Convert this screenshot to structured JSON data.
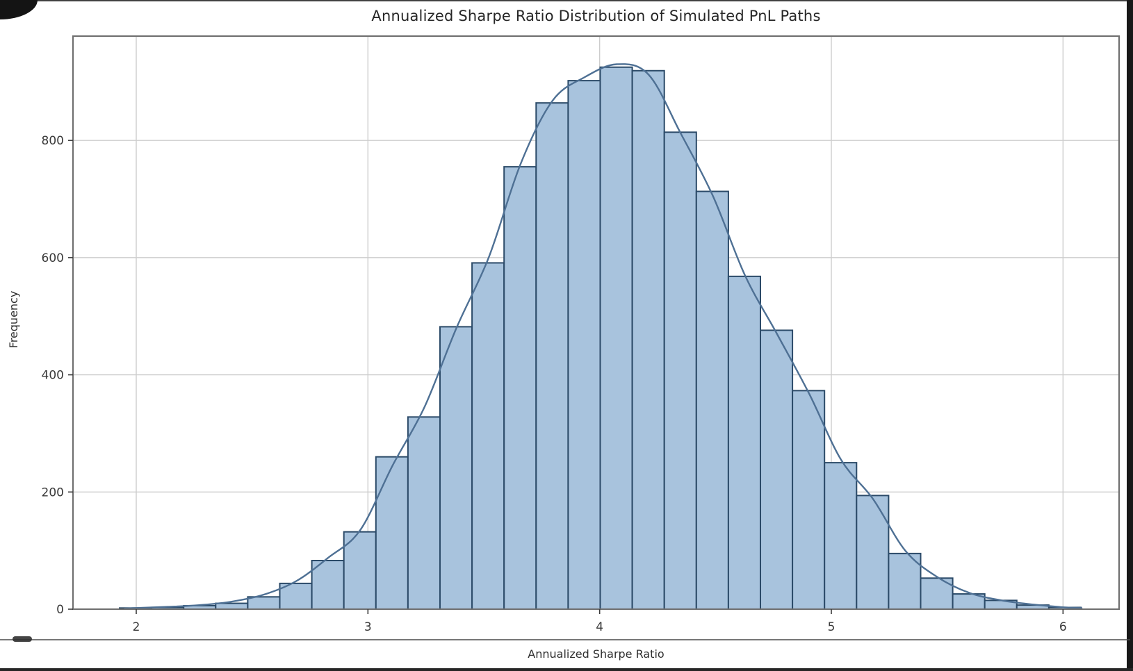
{
  "chart_data": {
    "type": "bar",
    "subtype": "histogram-with-kde",
    "title": "Annualized Sharpe Ratio Distribution of Simulated PnL Paths",
    "xlabel": "Annualized Sharpe Ratio",
    "ylabel": "Frequency",
    "xlim": [
      1.727,
      6.242
    ],
    "ylim": [
      0,
      978
    ],
    "x_ticks": [
      2,
      3,
      4,
      5,
      6
    ],
    "y_ticks": [
      0,
      200,
      400,
      600,
      800
    ],
    "grid": true,
    "legend": "none",
    "bins": {
      "start": 1.928,
      "width": 0.1383,
      "counts": [
        2,
        3,
        6,
        10,
        21,
        44,
        83,
        132,
        260,
        328,
        482,
        591,
        755,
        864,
        902,
        925,
        919,
        814,
        713,
        568,
        476,
        373,
        250,
        194,
        95,
        53,
        26,
        15,
        7,
        3
      ]
    },
    "kde": {
      "x": [
        1.95,
        1.999,
        2.137,
        2.276,
        2.414,
        2.552,
        2.691,
        2.829,
        2.967,
        3.106,
        3.244,
        3.382,
        3.521,
        3.659,
        3.797,
        3.936,
        4.074,
        4.212,
        4.35,
        4.489,
        4.627,
        4.765,
        4.904,
        5.042,
        5.18,
        5.319,
        5.457,
        5.595,
        5.734,
        5.872,
        6.01,
        6.08
      ],
      "y": [
        1,
        2,
        4,
        7,
        13,
        25,
        48,
        88,
        135,
        245,
        345,
        480,
        600,
        760,
        868,
        908,
        930,
        912,
        812,
        705,
        570,
        470,
        368,
        255,
        188,
        100,
        55,
        28,
        15,
        8,
        3,
        2
      ]
    },
    "colors": {
      "bar_fill": "#a8c3dd",
      "bar_edge": "#2b4a68",
      "kde_line": "#4e7094",
      "grid_line": "#cdcdcd",
      "spine": "#707070",
      "tick_mark": "#3c3c3c",
      "tick_label": "#3a3a3a",
      "text": "#262626",
      "background": "#ffffff"
    }
  }
}
